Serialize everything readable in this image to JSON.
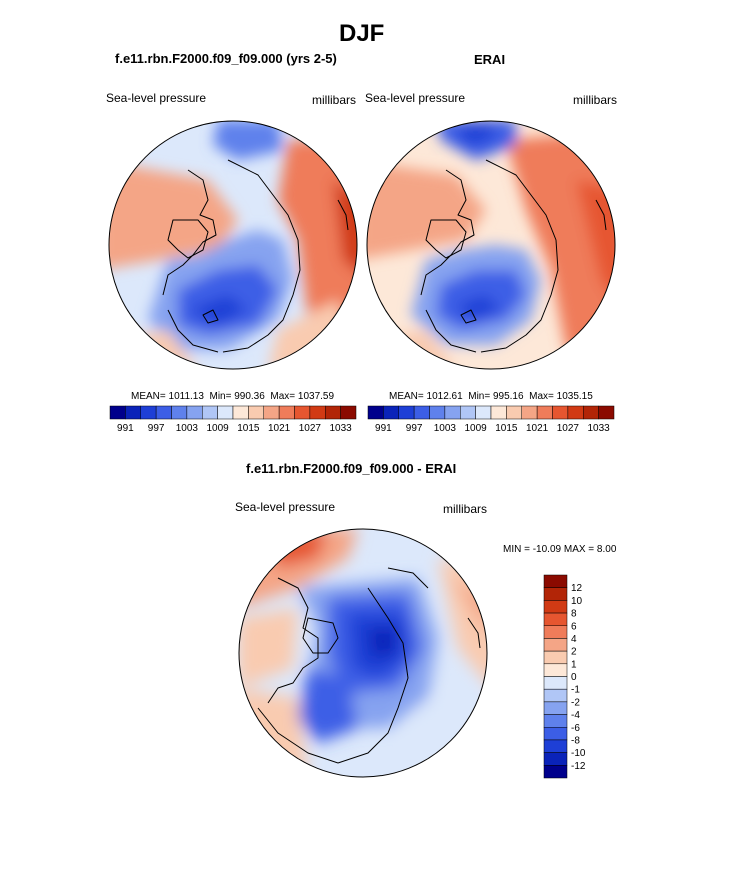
{
  "figure": {
    "season": "DJF",
    "left_title": "f.e11.rbn.F2000.f09_f09.000 (yrs 2-5)",
    "right_title": "ERAI",
    "bottom_title": "f.e11.rbn.F2000.f09_f09.000 - ERAI"
  },
  "chart_data": [
    {
      "type": "heatmap",
      "projection": "north-polar-stereographic",
      "left_string": "Sea-level pressure",
      "right_string": "millibars",
      "stats": {
        "mean_label": "MEAN= 1011.13",
        "min_label": "Min= 990.36",
        "max_label": "Max= 1037.59"
      },
      "mean": 1011.13,
      "min": 990.36,
      "max": 1037.59,
      "colorbar": {
        "levels": [
          991,
          994,
          997,
          1000,
          1003,
          1006,
          1009,
          1012,
          1015,
          1018,
          1021,
          1024,
          1027,
          1030,
          1033
        ],
        "tick_labels": [
          "991",
          "997",
          "1003",
          "1009",
          "1015",
          "1021",
          "1027",
          "1033"
        ],
        "colors": [
          "#00008c",
          "#0a23b9",
          "#1e3fd6",
          "#3c5ee6",
          "#5f81ec",
          "#86a3f0",
          "#b0c6f6",
          "#dce8fb",
          "#fde8d8",
          "#f9cbb0",
          "#f4a586",
          "#ef7c5a",
          "#e65630",
          "#d13a14",
          "#b22507",
          "#8b0a00"
        ]
      }
    },
    {
      "type": "heatmap",
      "projection": "north-polar-stereographic",
      "left_string": "Sea-level pressure",
      "right_string": "millibars",
      "stats": {
        "mean_label": "MEAN= 1012.61",
        "min_label": "Min= 995.16",
        "max_label": "Max= 1035.15"
      },
      "mean": 1012.61,
      "min": 995.16,
      "max": 1035.15,
      "colorbar": {
        "levels": [
          991,
          994,
          997,
          1000,
          1003,
          1006,
          1009,
          1012,
          1015,
          1018,
          1021,
          1024,
          1027,
          1030,
          1033
        ],
        "tick_labels": [
          "991",
          "997",
          "1003",
          "1009",
          "1015",
          "1021",
          "1027",
          "1033"
        ],
        "colors": [
          "#00008c",
          "#0a23b9",
          "#1e3fd6",
          "#3c5ee6",
          "#5f81ec",
          "#86a3f0",
          "#b0c6f6",
          "#dce8fb",
          "#fde8d8",
          "#f9cbb0",
          "#f4a586",
          "#ef7c5a",
          "#e65630",
          "#d13a14",
          "#b22507",
          "#8b0a00"
        ]
      }
    },
    {
      "type": "heatmap",
      "projection": "north-polar-stereographic",
      "left_string": "Sea-level pressure",
      "right_string": "millibars",
      "stats": {
        "minmax_label": "MIN = -10.09 MAX =   8.00"
      },
      "min": -10.09,
      "max": 8.0,
      "colorbar": {
        "orientation": "vertical",
        "tick_labels": [
          "12",
          "10",
          "8",
          "6",
          "4",
          "2",
          "1",
          "0",
          "-1",
          "-2",
          "-4",
          "-6",
          "-8",
          "-10",
          "-12"
        ],
        "colors": [
          "#8b0a00",
          "#b22507",
          "#d13a14",
          "#e65630",
          "#ef7c5a",
          "#f4a586",
          "#f9cbb0",
          "#fde8d8",
          "#dce8fb",
          "#b0c6f6",
          "#86a3f0",
          "#5f81ec",
          "#3c5ee6",
          "#1e3fd6",
          "#0a23b9",
          "#00008c"
        ]
      }
    }
  ]
}
